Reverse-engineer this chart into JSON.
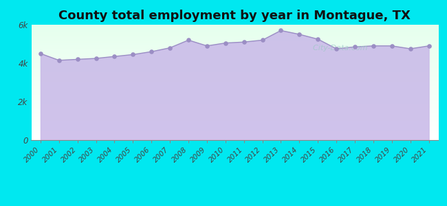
{
  "title": "County total employment by year in Montague, TX",
  "years": [
    2000,
    2001,
    2002,
    2003,
    2004,
    2005,
    2006,
    2007,
    2008,
    2009,
    2010,
    2011,
    2012,
    2013,
    2014,
    2015,
    2016,
    2017,
    2018,
    2019,
    2020,
    2021
  ],
  "values": [
    4500,
    4150,
    4200,
    4250,
    4350,
    4450,
    4600,
    4800,
    5200,
    4900,
    5050,
    5100,
    5200,
    5700,
    5500,
    5250,
    4750,
    4850,
    4900,
    4900,
    4750,
    4900
  ],
  "ylim": [
    0,
    6000
  ],
  "yticks": [
    0,
    2000,
    4000,
    6000
  ],
  "ytick_labels": [
    "0",
    "2k",
    "4k",
    "6k"
  ],
  "fill_color": "#c8b8e8",
  "line_color": "#9b8ec4",
  "marker_color": "#9b8ec4",
  "bg_outer": "#00e8f0",
  "title_fontsize": 13,
  "watermark": "  City-Data.com"
}
